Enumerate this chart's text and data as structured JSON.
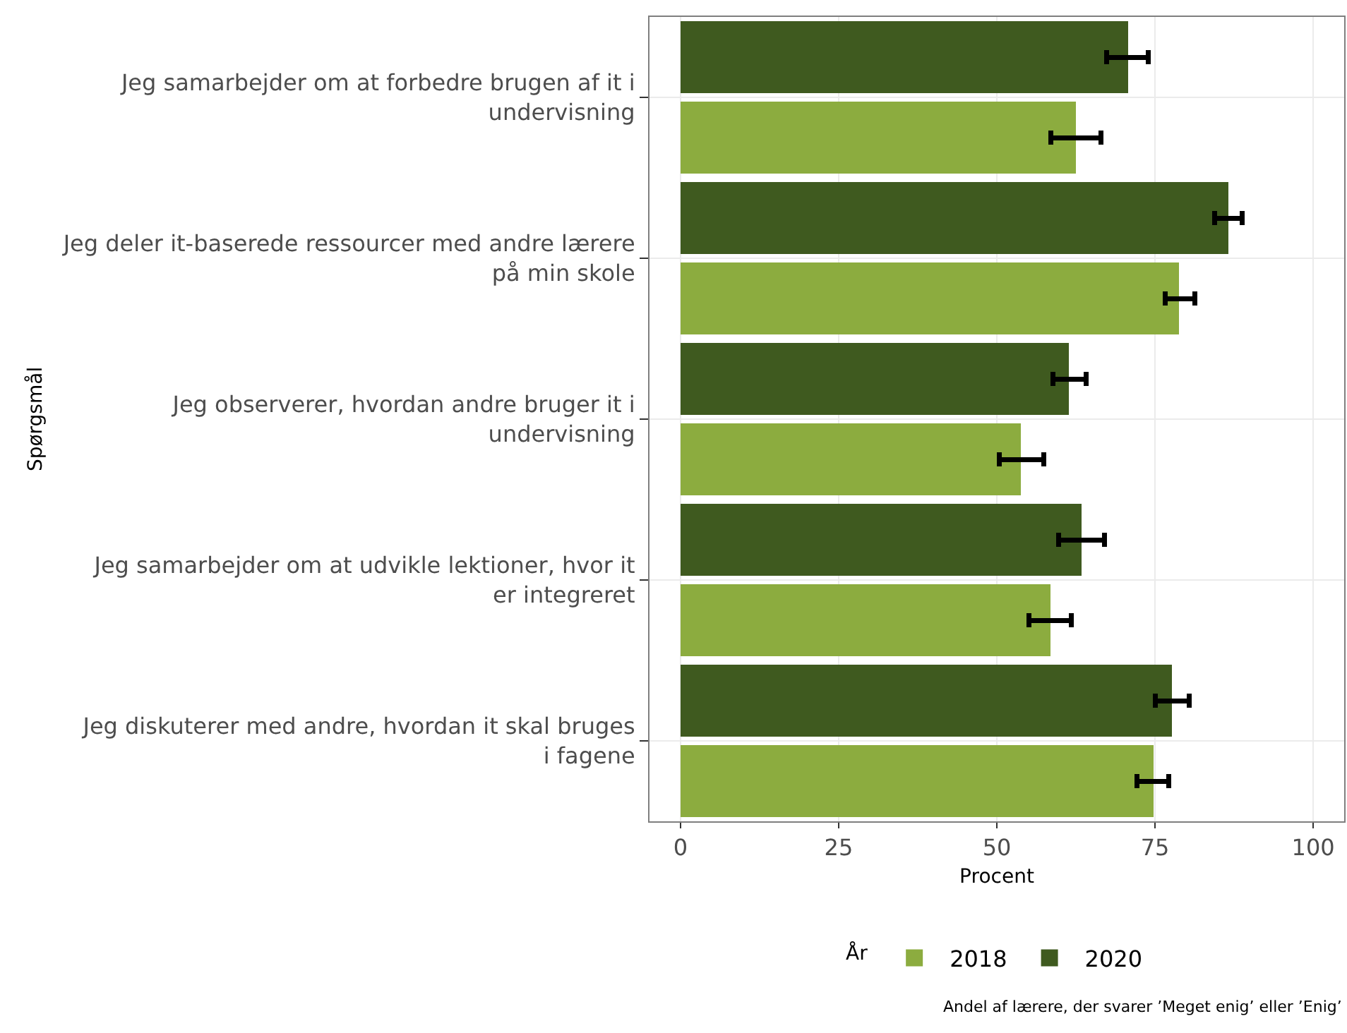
{
  "chart_data": {
    "type": "bar",
    "orientation": "horizontal",
    "categories": [
      "Jeg samarbejder om at forbedre brugen af it i undervisning",
      "Jeg deler it-baserede ressourcer med andre lærere på min skole",
      "Jeg observerer, hvordan andre bruger it i undervisning",
      "Jeg samarbejder om at udvikle lektioner, hvor it er integreret",
      "Jeg diskuterer med andre, hvordan it skal bruges i fagene"
    ],
    "series": [
      {
        "name": "2020",
        "color": "#3f5a1f",
        "values": [
          70.8,
          86.6,
          61.4,
          63.4,
          77.7
        ],
        "errors": [
          [
            67.4,
            73.9
          ],
          [
            84.4,
            88.8
          ],
          [
            58.9,
            64.1
          ],
          [
            59.8,
            67.0
          ],
          [
            75.0,
            80.4
          ]
        ]
      },
      {
        "name": "2018",
        "color": "#8cac3f",
        "values": [
          62.5,
          78.8,
          53.8,
          58.5,
          74.8
        ],
        "errors": [
          [
            58.5,
            66.5
          ],
          [
            76.6,
            81.3
          ],
          [
            50.4,
            57.4
          ],
          [
            55.1,
            61.8
          ],
          [
            72.1,
            77.2
          ]
        ]
      }
    ],
    "xlim": [
      -4.9,
      104.9
    ],
    "xticks": [
      0,
      25,
      50,
      75,
      100
    ],
    "xlabel": "Procent",
    "ylabel": "Spørgsmål",
    "legend_title": "År",
    "legend": "bottom",
    "grid": true,
    "annotations": [
      "Andel af lærere, der svarer ’Meget enig’ eller ’Enig’"
    ]
  }
}
